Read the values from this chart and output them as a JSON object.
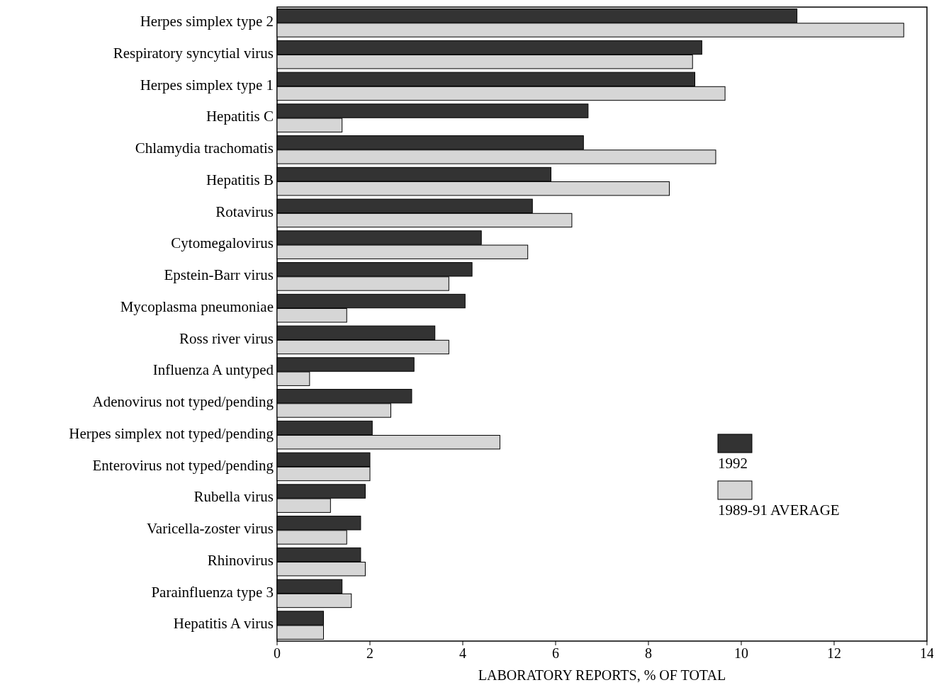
{
  "chart_data": {
    "type": "bar",
    "orientation": "horizontal",
    "xlabel": "LABORATORY REPORTS, % OF TOTAL",
    "categories": [
      "Herpes simplex type 2",
      "Respiratory syncytial virus",
      "Herpes simplex type 1",
      "Hepatitis C",
      "Chlamydia trachomatis",
      "Hepatitis B",
      "Rotavirus",
      "Cytomegalovirus",
      "Epstein-Barr virus",
      "Mycoplasma pneumoniae",
      "Ross river virus",
      "Influenza A untyped",
      "Adenovirus not typed/pending",
      "Herpes simplex not typed/pending",
      "Enterovirus not typed/pending",
      "Rubella virus",
      "Varicella-zoster virus",
      "Rhinovirus",
      "Parainfluenza type 3",
      "Hepatitis A virus"
    ],
    "series": [
      {
        "name": "1992",
        "color": "#333333",
        "values": [
          11.2,
          9.15,
          9.0,
          6.7,
          6.6,
          5.9,
          5.5,
          4.4,
          4.2,
          4.05,
          3.4,
          2.95,
          2.9,
          2.05,
          2.0,
          1.9,
          1.8,
          1.8,
          1.4,
          1.0
        ]
      },
      {
        "name": "1989-91 AVERAGE",
        "color": "#d6d6d6",
        "values": [
          13.5,
          8.95,
          9.65,
          1.4,
          9.45,
          8.45,
          6.35,
          5.4,
          3.7,
          1.5,
          3.7,
          0.7,
          2.45,
          4.8,
          2.0,
          1.15,
          1.5,
          1.9,
          1.6,
          1.0
        ]
      }
    ],
    "xlim": [
      0,
      14
    ],
    "xticks": [
      0,
      2,
      4,
      6,
      8,
      10,
      12,
      14
    ],
    "legend": "right"
  }
}
